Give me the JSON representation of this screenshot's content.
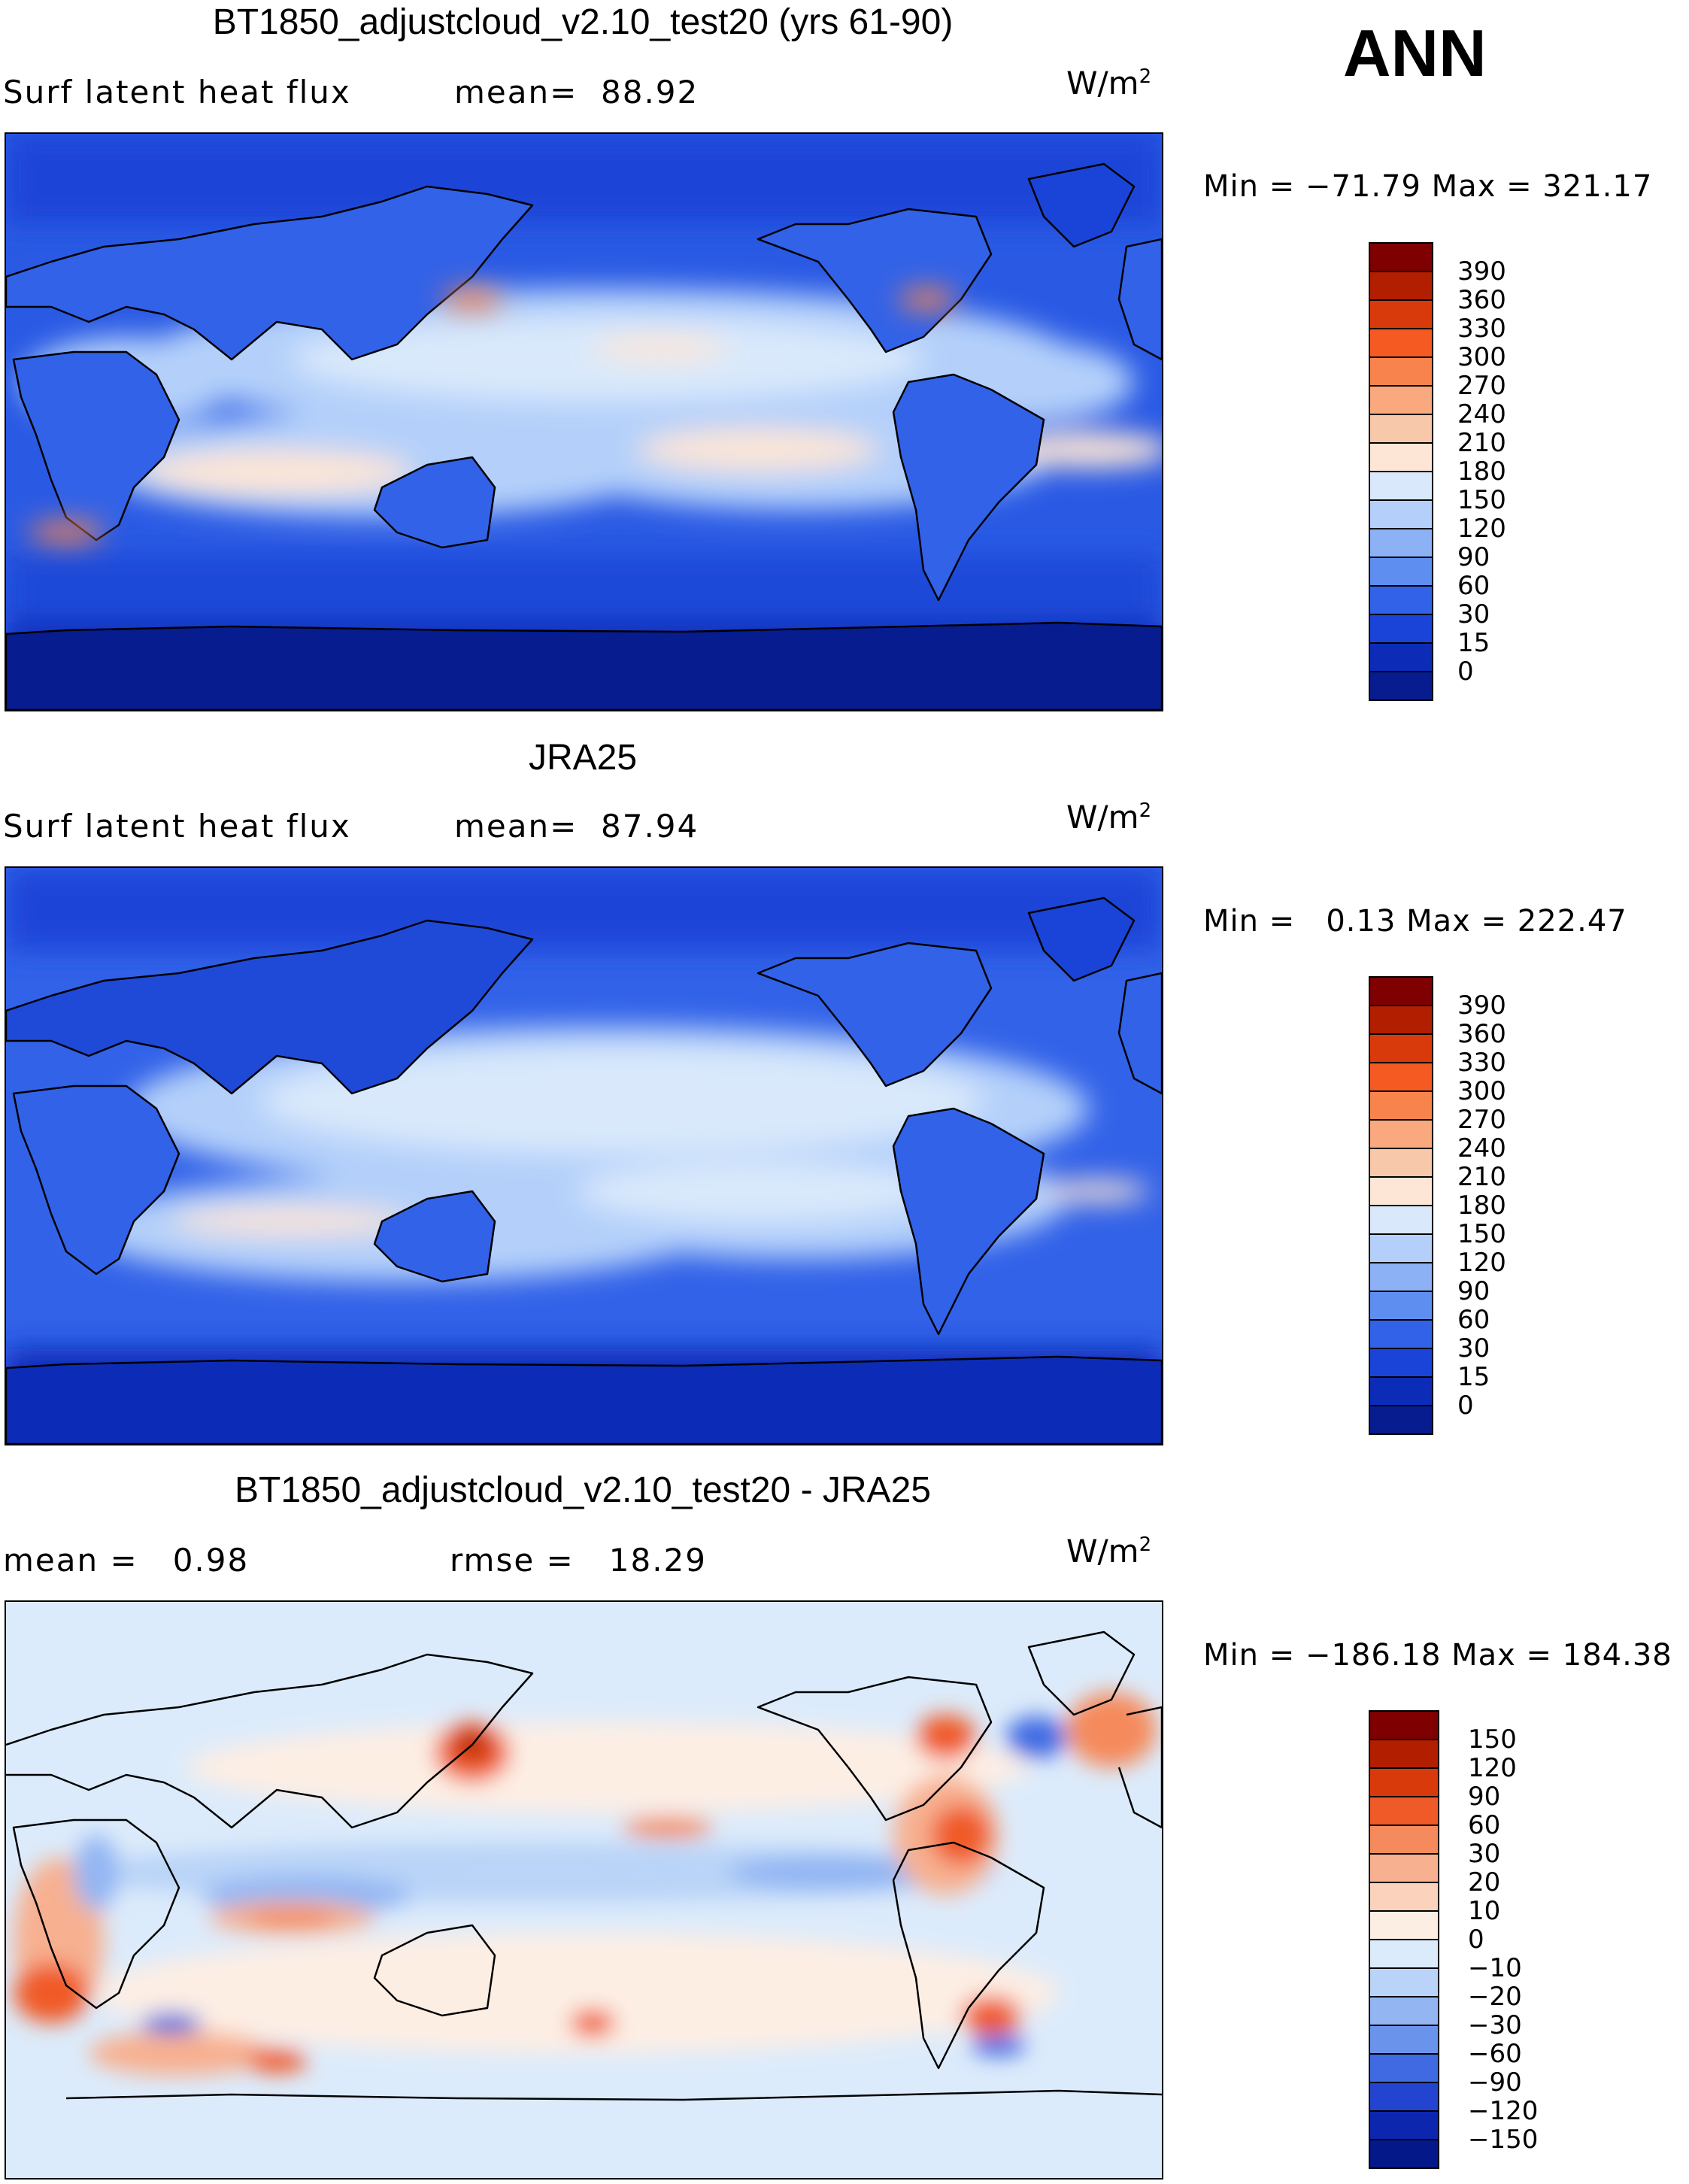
{
  "season": "ANN",
  "panels": [
    {
      "title": "BT1850_adjustcloud_v2.10_test20 (yrs 61-90)",
      "subtitle_left": "Surf latent heat flux",
      "subtitle_mid": "mean=  88.92",
      "units_base": "W/m",
      "units_exp": "2",
      "minmax": "Min = −71.79 Max = 321.17",
      "colorbar": [
        "390",
        "360",
        "330",
        "300",
        "270",
        "240",
        "210",
        "180",
        "150",
        "120",
        "90",
        "60",
        "30",
        "15",
        "0"
      ],
      "colors": [
        "#7f0000",
        "#b21e00",
        "#d93a0c",
        "#f45a22",
        "#f9834c",
        "#faa87e",
        "#f7c9aa",
        "#fde6d6",
        "#d9e9fb",
        "#b4d0fa",
        "#8cb1f5",
        "#5e8ef0",
        "#3262e8",
        "#1a44d8",
        "#0c2cb8",
        "#061c8f"
      ]
    },
    {
      "title": "JRA25",
      "subtitle_left": "Surf latent heat flux",
      "subtitle_mid": "mean=  87.94",
      "units_base": "W/m",
      "units_exp": "2",
      "minmax": "Min =   0.13 Max = 222.47",
      "colorbar": [
        "390",
        "360",
        "330",
        "300",
        "270",
        "240",
        "210",
        "180",
        "150",
        "120",
        "90",
        "60",
        "30",
        "15",
        "0"
      ],
      "colors": [
        "#7f0000",
        "#b21e00",
        "#d93a0c",
        "#f45a22",
        "#f9834c",
        "#faa87e",
        "#f7c9aa",
        "#fde6d6",
        "#d9e9fb",
        "#b4d0fa",
        "#8cb1f5",
        "#5e8ef0",
        "#3262e8",
        "#1a44d8",
        "#0c2cb8",
        "#061c8f"
      ]
    },
    {
      "title": "BT1850_adjustcloud_v2.10_test20 - JRA25",
      "subtitle_left": "mean =   0.98",
      "subtitle_mid": "rmse =   18.29",
      "units_base": "W/m",
      "units_exp": "2",
      "minmax": "Min = −186.18 Max = 184.38",
      "colorbar": [
        "150",
        "120",
        "90",
        "60",
        "30",
        "20",
        "10",
        "0",
        "−10",
        "−20",
        "−30",
        "−60",
        "−90",
        "−120",
        "−150"
      ],
      "colors": [
        "#7f0000",
        "#b21e00",
        "#d93a0c",
        "#f05a28",
        "#f58a5c",
        "#f7b090",
        "#fbd2bc",
        "#fdeee4",
        "#dcebfb",
        "#b9d4f8",
        "#93b6f3",
        "#6a94ec",
        "#3f6ae2",
        "#2244d0",
        "#0c26ae",
        "#051889"
      ]
    }
  ],
  "chart_data": [
    {
      "type": "heatmap",
      "title": "BT1850_adjustcloud_v2.10_test20 (yrs 61-90)",
      "variable": "Surf latent heat flux",
      "units": "W/m2",
      "mean": 88.92,
      "min": -71.79,
      "max": 321.17,
      "levels": [
        0,
        15,
        30,
        60,
        90,
        120,
        150,
        180,
        210,
        240,
        270,
        300,
        330,
        360,
        390
      ]
    },
    {
      "type": "heatmap",
      "title": "JRA25",
      "variable": "Surf latent heat flux",
      "units": "W/m2",
      "mean": 87.94,
      "min": 0.13,
      "max": 222.47,
      "levels": [
        0,
        15,
        30,
        60,
        90,
        120,
        150,
        180,
        210,
        240,
        270,
        300,
        330,
        360,
        390
      ]
    },
    {
      "type": "heatmap",
      "title": "BT1850_adjustcloud_v2.10_test20 - JRA25",
      "mean": 0.98,
      "rmse": 18.29,
      "units": "W/m2",
      "min": -186.18,
      "max": 184.38,
      "levels": [
        -150,
        -120,
        -90,
        -60,
        -30,
        -20,
        -10,
        0,
        10,
        20,
        30,
        60,
        90,
        120,
        150
      ]
    }
  ]
}
